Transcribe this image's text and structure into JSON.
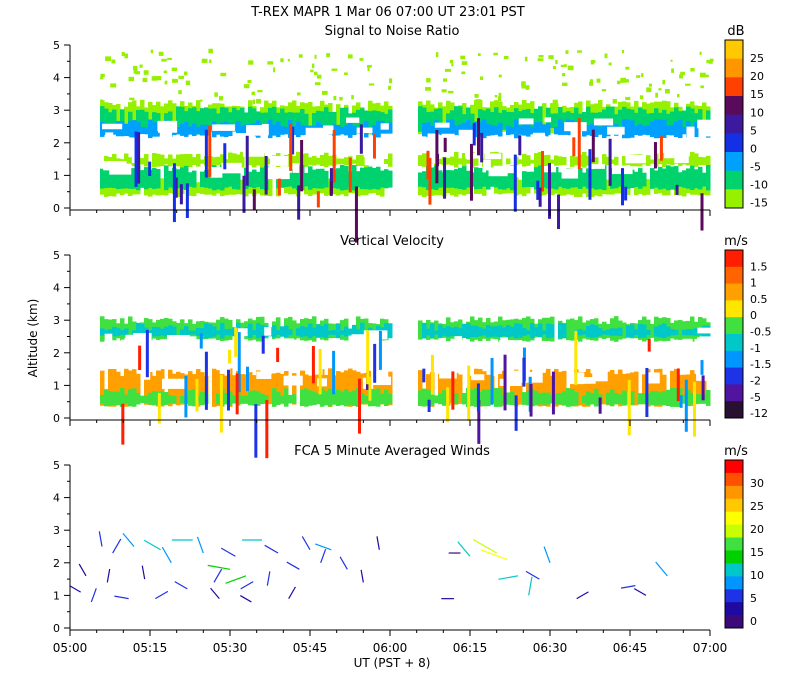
{
  "header": {
    "title": "T-REX   MAPR   1 Mar 06   07:00 UT   23:01   PST"
  },
  "chart_data": [
    {
      "type": "heatmap",
      "title": "Signal to Noise Ratio",
      "ylim": [
        0,
        5
      ],
      "yticks": [
        "0",
        "1",
        "2",
        "3",
        "4",
        "5"
      ],
      "colorbar": {
        "unit": "dB",
        "labels": [
          "25",
          "20",
          "15",
          "10",
          "5",
          "0",
          "-5",
          "-10",
          "-15"
        ],
        "colors": [
          "#ffc800",
          "#ff9600",
          "#ff4000",
          "#5a0a5a",
          "#3c1aa0",
          "#1430e6",
          "#00a0ff",
          "#00d26e",
          "#96f000"
        ]
      },
      "data_gap_ut": [
        "06:00",
        "06:06"
      ],
      "layers": [
        {
          "name": "weak",
          "color": "#96f000",
          "bands": [
            [
              0.4,
              0.9
            ],
            [
              1.3,
              1.6
            ],
            [
              2.3,
              3.2
            ]
          ]
        },
        {
          "name": "moderate",
          "color": "#00d26e",
          "bands": [
            [
              2.4,
              3.0
            ],
            [
              0.6,
              1.2
            ]
          ]
        },
        {
          "name": "strong",
          "color": "#00a0ff",
          "bands": [
            [
              2.2,
              2.6
            ]
          ]
        }
      ]
    },
    {
      "type": "heatmap",
      "title": "Vertical Velocity",
      "ylabel": "Altitude (km)",
      "ylim": [
        0,
        5
      ],
      "yticks": [
        "0",
        "1",
        "2",
        "3",
        "4",
        "5"
      ],
      "colorbar": {
        "unit": "m/s",
        "labels": [
          "1.5",
          "1",
          "0.5",
          "0",
          "-0.5",
          "-1",
          "-1.5",
          "-2",
          "-5",
          "-12"
        ],
        "colors": [
          "#ff1e00",
          "#ff6400",
          "#ffa000",
          "#ffe600",
          "#40e040",
          "#00c8c8",
          "#0096ff",
          "#1e32e6",
          "#5014a0",
          "#281030"
        ]
      },
      "data_gap_ut": [
        "06:00",
        "06:06"
      ],
      "layers": [
        {
          "name": "upper",
          "color": "#40e040",
          "bands": [
            [
              2.4,
              3.0
            ]
          ]
        },
        {
          "name": "upper-accent",
          "color": "#00c8c8",
          "bands": [
            [
              2.5,
              2.8
            ]
          ]
        },
        {
          "name": "lower",
          "color": "#ffa000",
          "bands": [
            [
              0.4,
              1.4
            ]
          ]
        },
        {
          "name": "lower-accent",
          "color": "#40e040",
          "bands": [
            [
              0.4,
              0.8
            ]
          ]
        }
      ]
    },
    {
      "type": "scatter",
      "title": "FCA 5 Minute Averaged Winds",
      "xlabel": "UT  (PST + 8)",
      "ylim": [
        0,
        5
      ],
      "yticks": [
        "0",
        "1",
        "2",
        "3",
        "4",
        "5"
      ],
      "xticks": [
        "05:00",
        "05:15",
        "05:30",
        "05:45",
        "06:00",
        "06:15",
        "06:30",
        "06:45",
        "07:00"
      ],
      "xlim_minutes": [
        0,
        120
      ],
      "colorbar": {
        "unit": "m/s",
        "labels": [
          "30",
          "25",
          "20",
          "15",
          "10",
          "5",
          "0"
        ],
        "colors": [
          "#ff0000",
          "#ff5000",
          "#ff9600",
          "#ffc800",
          "#ffff00",
          "#c8ff00",
          "#40e040",
          "#00d000",
          "#00c8c8",
          "#0096ff",
          "#1e32e6",
          "#1e0aa0",
          "#3c0a78"
        ]
      },
      "winds": [
        {
          "t": 2,
          "alt": 1.1,
          "dir": 300,
          "spd": 3
        },
        {
          "t": 3,
          "alt": 1.6,
          "dir": 330,
          "spd": 4
        },
        {
          "t": 4,
          "alt": 0.8,
          "dir": 20,
          "spd": 5
        },
        {
          "t": 6,
          "alt": 2.5,
          "dir": 350,
          "spd": 6
        },
        {
          "t": 7,
          "alt": 1.4,
          "dir": 10,
          "spd": 4
        },
        {
          "t": 8,
          "alt": 2.3,
          "dir": 30,
          "spd": 7
        },
        {
          "t": 11,
          "alt": 0.9,
          "dir": 280,
          "spd": 5
        },
        {
          "t": 12,
          "alt": 2.5,
          "dir": 320,
          "spd": 8
        },
        {
          "t": 14,
          "alt": 1.5,
          "dir": 350,
          "spd": 4
        },
        {
          "t": 16,
          "alt": 0.9,
          "dir": 60,
          "spd": 5
        },
        {
          "t": 17,
          "alt": 2.4,
          "dir": 300,
          "spd": 10
        },
        {
          "t": 19,
          "alt": 2.0,
          "dir": 330,
          "spd": 9
        },
        {
          "t": 22,
          "alt": 1.2,
          "dir": 300,
          "spd": 5
        },
        {
          "t": 23,
          "alt": 2.7,
          "dir": 270,
          "spd": 12
        },
        {
          "t": 25,
          "alt": 2.3,
          "dir": 340,
          "spd": 8
        },
        {
          "t": 27,
          "alt": 1.4,
          "dir": 30,
          "spd": 6
        },
        {
          "t": 28,
          "alt": 0.9,
          "dir": 320,
          "spd": 4
        },
        {
          "t": 30,
          "alt": 1.8,
          "dir": 280,
          "spd": 14
        },
        {
          "t": 31,
          "alt": 2.2,
          "dir": 300,
          "spd": 7
        },
        {
          "t": 32,
          "alt": 1.2,
          "dir": 60,
          "spd": 5
        },
        {
          "t": 33,
          "alt": 1.6,
          "dir": 250,
          "spd": 13
        },
        {
          "t": 34,
          "alt": 0.8,
          "dir": 300,
          "spd": 3
        },
        {
          "t": 36,
          "alt": 2.7,
          "dir": 270,
          "spd": 11
        },
        {
          "t": 37,
          "alt": 1.3,
          "dir": 10,
          "spd": 5
        },
        {
          "t": 39,
          "alt": 2.3,
          "dir": 300,
          "spd": 6
        },
        {
          "t": 41,
          "alt": 0.9,
          "dir": 30,
          "spd": 4
        },
        {
          "t": 43,
          "alt": 1.8,
          "dir": 300,
          "spd": 5
        },
        {
          "t": 45,
          "alt": 2.4,
          "dir": 330,
          "spd": 6
        },
        {
          "t": 47,
          "alt": 2.0,
          "dir": 20,
          "spd": 5
        },
        {
          "t": 49,
          "alt": 2.4,
          "dir": 290,
          "spd": 8
        },
        {
          "t": 52,
          "alt": 1.8,
          "dir": 330,
          "spd": 5
        },
        {
          "t": 55,
          "alt": 1.4,
          "dir": 350,
          "spd": 3
        },
        {
          "t": 58,
          "alt": 2.4,
          "dir": 350,
          "spd": 4
        },
        {
          "t": 71,
          "alt": 2.3,
          "dir": 90,
          "spd": 2
        },
        {
          "t": 72,
          "alt": 0.9,
          "dir": 270,
          "spd": 3
        },
        {
          "t": 75,
          "alt": 2.2,
          "dir": 320,
          "spd": 10
        },
        {
          "t": 80,
          "alt": 2.3,
          "dir": 300,
          "spd": 19
        },
        {
          "t": 82,
          "alt": 2.1,
          "dir": 290,
          "spd": 20
        },
        {
          "t": 84,
          "alt": 1.6,
          "dir": 260,
          "spd": 11
        },
        {
          "t": 86,
          "alt": 1.0,
          "dir": 10,
          "spd": 10
        },
        {
          "t": 88,
          "alt": 1.5,
          "dir": 300,
          "spd": 6
        },
        {
          "t": 90,
          "alt": 2.0,
          "dir": 340,
          "spd": 8
        },
        {
          "t": 95,
          "alt": 0.9,
          "dir": 60,
          "spd": 4
        },
        {
          "t": 106,
          "alt": 1.3,
          "dir": 260,
          "spd": 5
        },
        {
          "t": 108,
          "alt": 1.0,
          "dir": 300,
          "spd": 4
        },
        {
          "t": 112,
          "alt": 1.6,
          "dir": 320,
          "spd": 9
        }
      ]
    }
  ]
}
